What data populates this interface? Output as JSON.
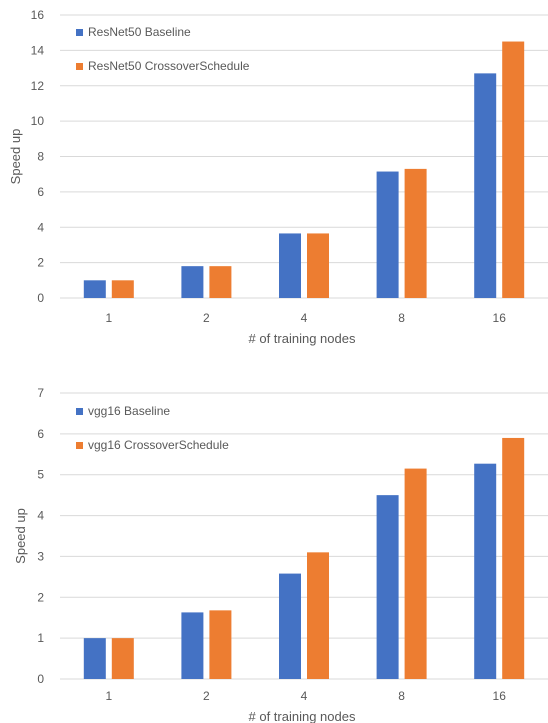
{
  "chart_data": [
    {
      "type": "bar",
      "categories": [
        "1",
        "2",
        "4",
        "8",
        "16"
      ],
      "series": [
        {
          "name": "ResNet50 Baseline",
          "color": "#4472C4",
          "values": [
            1.0,
            1.8,
            3.65,
            7.15,
            12.7
          ]
        },
        {
          "name": "ResNet50 CrossoverSchedule",
          "color": "#ED7D31",
          "values": [
            1.0,
            1.8,
            3.65,
            7.3,
            14.5
          ]
        }
      ],
      "xlabel": "# of training nodes",
      "ylabel": "Speed up",
      "ylim": [
        0,
        16
      ],
      "yticks": [
        0,
        2,
        4,
        6,
        8,
        10,
        12,
        14,
        16
      ],
      "grid": true,
      "legend": "top-left"
    },
    {
      "type": "bar",
      "categories": [
        "1",
        "2",
        "4",
        "8",
        "16"
      ],
      "series": [
        {
          "name": "vgg16 Baseline",
          "color": "#4472C4",
          "values": [
            1.0,
            1.63,
            2.58,
            4.5,
            5.27
          ]
        },
        {
          "name": "vgg16 CrossoverSchedule",
          "color": "#ED7D31",
          "values": [
            1.0,
            1.68,
            3.1,
            5.15,
            5.9
          ]
        }
      ],
      "xlabel": "# of training nodes",
      "ylabel": "Speed up",
      "ylim": [
        0,
        7
      ],
      "yticks": [
        0,
        1,
        2,
        3,
        4,
        5,
        6,
        7
      ],
      "grid": true,
      "legend": "top-left"
    }
  ]
}
